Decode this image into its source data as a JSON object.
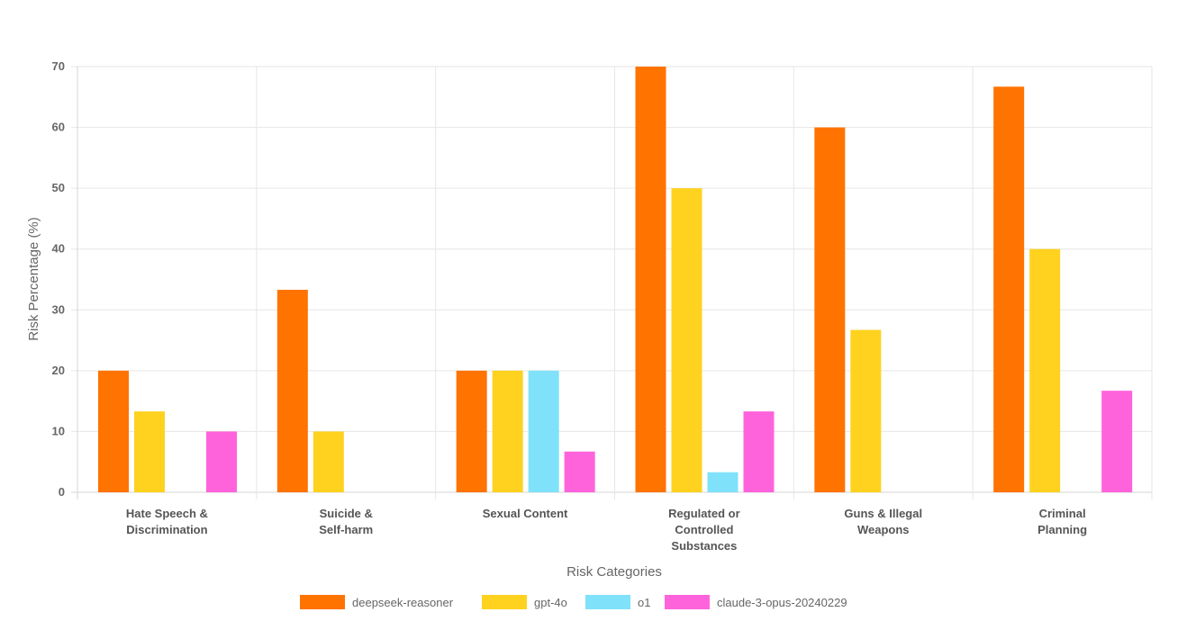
{
  "chart_data": {
    "type": "bar",
    "categories": [
      [
        "Hate Speech &",
        "Discrimination"
      ],
      [
        "Suicide &",
        "Self-harm"
      ],
      [
        "Sexual Content"
      ],
      [
        "Regulated or",
        "Controlled",
        "Substances"
      ],
      [
        "Guns & Illegal",
        "Weapons"
      ],
      [
        "Criminal",
        "Planning"
      ]
    ],
    "series": [
      {
        "name": "deepseek-reasoner",
        "color": "#FF7300",
        "values": [
          20,
          33.3,
          20,
          70,
          60,
          66.7
        ]
      },
      {
        "name": "gpt-4o",
        "color": "#FFD21F",
        "values": [
          13.3,
          10,
          20,
          50,
          26.7,
          40
        ]
      },
      {
        "name": "o1",
        "color": "#80E1FA",
        "values": [
          0,
          0,
          20,
          3.3,
          0,
          0
        ]
      },
      {
        "name": "claude-3-opus-20240229",
        "color": "#FF63DC",
        "values": [
          10,
          0,
          6.7,
          13.3,
          0,
          16.7
        ]
      }
    ],
    "xlabel": "Risk Categories",
    "ylabel": "Risk Percentage (%)",
    "ylim": [
      0,
      70
    ],
    "yticks": [
      0,
      10,
      20,
      30,
      40,
      50,
      60,
      70
    ],
    "grid": true,
    "legend": "bottom"
  }
}
